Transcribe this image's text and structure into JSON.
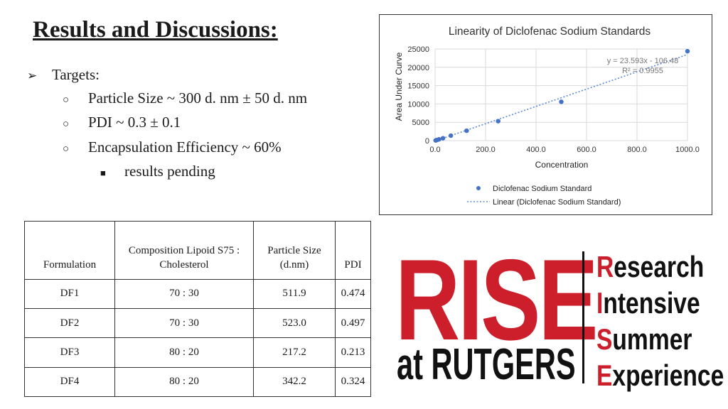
{
  "slide": {
    "title": "Results and Discussions:",
    "bullets": {
      "targets_label": "Targets:",
      "items": [
        "Particle Size ~ 300 d. nm ± 50 d. nm",
        "PDI ~ 0.3 ± 0.1",
        "Encapsulation Efficiency ~ 60%"
      ],
      "sub_item": "results pending"
    }
  },
  "chart_data": {
    "type": "scatter",
    "title": "Linearity of Diclofenac Sodium Standards",
    "xlabel": "Concentration",
    "ylabel": "Area Under Curve",
    "xlim": [
      0,
      1000
    ],
    "ylim": [
      0,
      25000
    ],
    "x_ticks": [
      "0.0",
      "200.0",
      "400.0",
      "600.0",
      "800.0",
      "1000.0"
    ],
    "y_ticks": [
      "0",
      "5000",
      "10000",
      "15000",
      "20000",
      "25000"
    ],
    "series": [
      {
        "name": "Diclofenac Sodium Standard",
        "x": [
          1.95,
          3.9,
          7.8,
          15.6,
          31.25,
          62.5,
          125,
          250,
          500,
          1000
        ],
        "y": [
          40,
          100,
          180,
          340,
          640,
          1350,
          2700,
          5300,
          10600,
          24400
        ]
      }
    ],
    "trendline": {
      "name": "Linear (Diclofenac Sodium Standard)",
      "slope": 23.593,
      "intercept": -106.48,
      "equation": "y = 23.593x - 106.48",
      "r2": "R² = 0.9955"
    },
    "grid": true,
    "legend": "bottom"
  },
  "table": {
    "headers": [
      "Formulation",
      "Composition Lipoid S75 : Cholesterol",
      "Particle Size (d.nm)",
      "PDI"
    ],
    "rows": [
      [
        "DF1",
        "70 : 30",
        "511.9",
        "0.474"
      ],
      [
        "DF2",
        "70 : 30",
        "523.0",
        "0.497"
      ],
      [
        "DF3",
        "80 : 20",
        "217.2",
        "0.213"
      ],
      [
        "DF4",
        "80 : 20",
        "342.2",
        "0.324"
      ]
    ]
  },
  "logo": {
    "big": "RISE",
    "small": "at RUTGERS",
    "acronym": [
      {
        "cap": "R",
        "rest": "esearch"
      },
      {
        "cap": "I",
        "rest": "ntensive"
      },
      {
        "cap": "S",
        "rest": "ummer"
      },
      {
        "cap": "E",
        "rest": "xperience"
      }
    ]
  },
  "colors": {
    "accent_red": "#cc1f2b",
    "point_blue": "#4472c4",
    "text": "#1a1a1a"
  }
}
